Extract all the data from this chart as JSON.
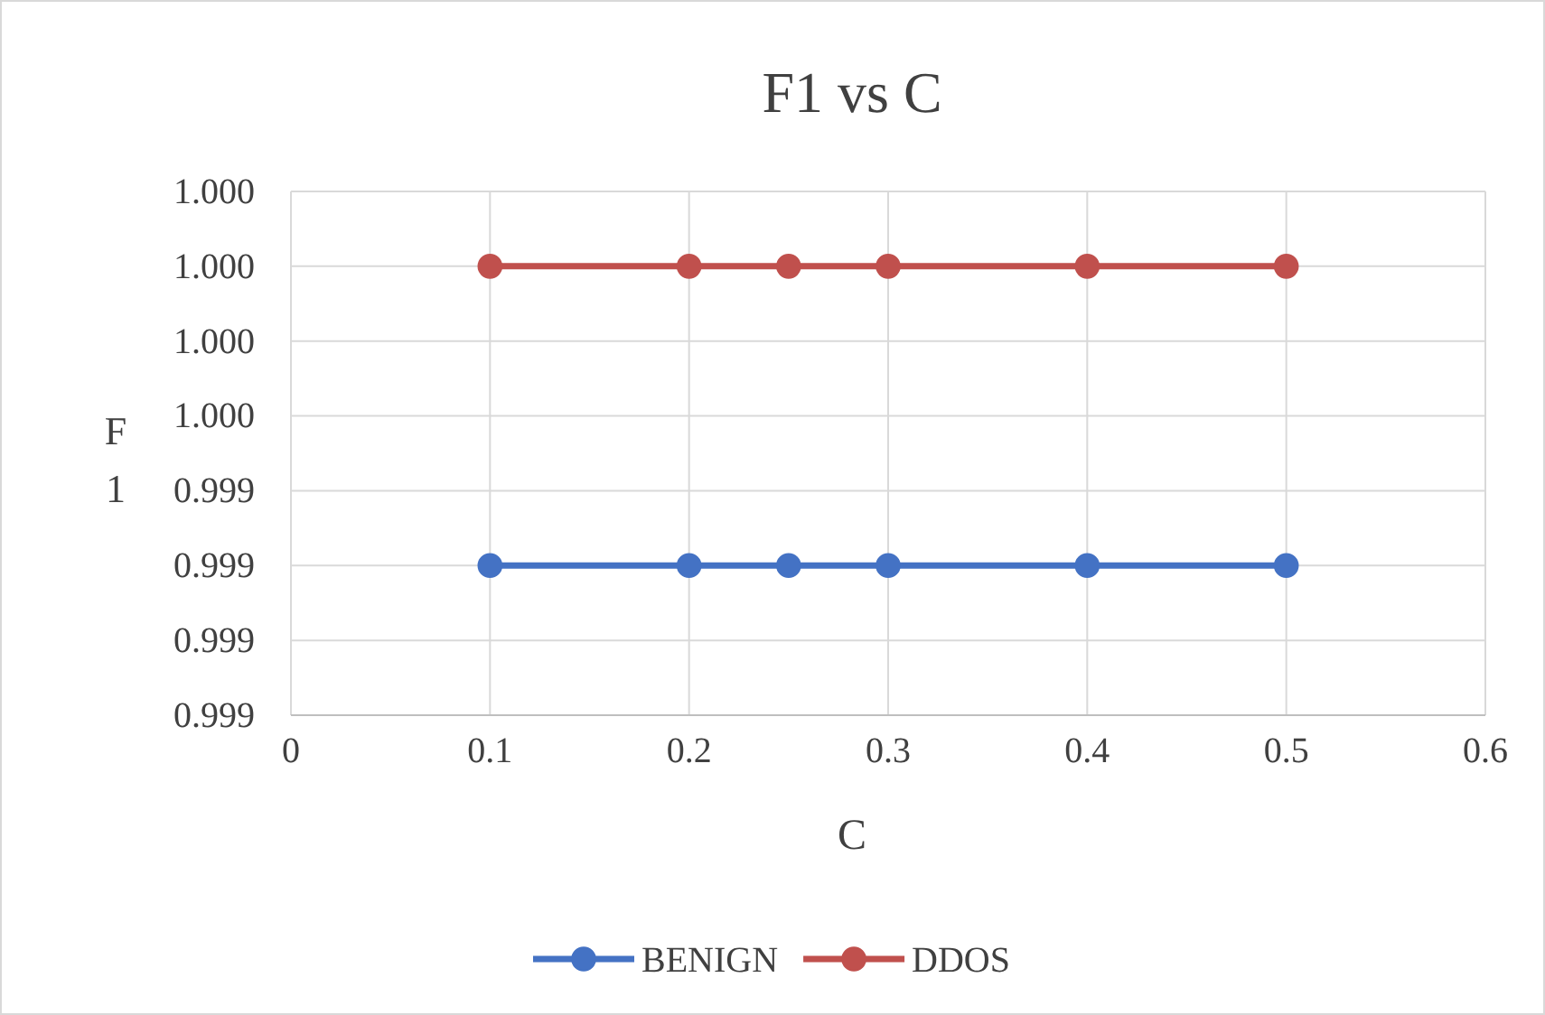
{
  "chart_data": {
    "type": "line",
    "title": "F1 vs C",
    "xlabel": "C",
    "ylabel": "F1",
    "x": [
      0.1,
      0.2,
      0.25,
      0.3,
      0.4,
      0.5
    ],
    "series": [
      {
        "name": "BENIGN",
        "color": "#4472c4",
        "values": [
          0.9994,
          0.9994,
          0.9994,
          0.9994,
          0.9994,
          0.9994
        ]
      },
      {
        "name": "DDOS",
        "color": "#c0504d",
        "values": [
          0.9998,
          0.9998,
          0.9998,
          0.9998,
          0.9998,
          0.9998
        ]
      }
    ],
    "xlim": [
      0,
      0.6
    ],
    "xticks": [
      0,
      0.1,
      0.2,
      0.3,
      0.4,
      0.5,
      0.6
    ],
    "ylim": [
      0.9992,
      0.9999
    ],
    "yticks": [
      {
        "value": 0.9992,
        "label": "0.999"
      },
      {
        "value": 0.9993,
        "label": "0.999"
      },
      {
        "value": 0.9994,
        "label": "0.999"
      },
      {
        "value": 0.9995,
        "label": "0.999"
      },
      {
        "value": 0.9996,
        "label": "1.000"
      },
      {
        "value": 0.9997,
        "label": "1.000"
      },
      {
        "value": 0.9998,
        "label": "1.000"
      },
      {
        "value": 0.9999,
        "label": "1.000"
      }
    ],
    "grid": true,
    "legend": "bottom",
    "marker": "circle",
    "line_style": "solid"
  }
}
